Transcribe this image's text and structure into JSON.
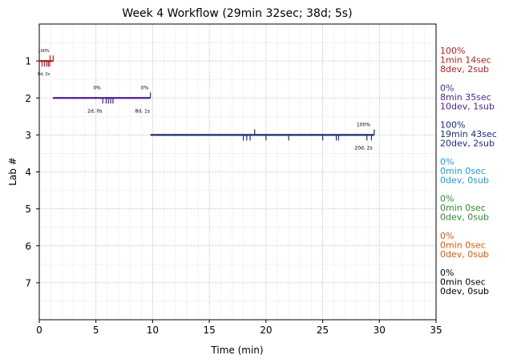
{
  "chart_data": {
    "type": "timeline",
    "title": "Week 4 Workflow (29min 32sec; 38d; 5s)",
    "xlabel": "Time (min)",
    "ylabel": "Lab #",
    "xlim": [
      0,
      35
    ],
    "ylim": [
      8,
      0
    ],
    "xticks": [
      0,
      5,
      10,
      15,
      20,
      25,
      30,
      35
    ],
    "xtick_labels": [
      "0",
      "5",
      "10",
      "15",
      "20",
      "25",
      "30",
      "35"
    ],
    "yticks": [
      1,
      2,
      3,
      4,
      5,
      6,
      7
    ],
    "ytick_labels": [
      "1",
      "2",
      "3",
      "4",
      "5",
      "6",
      "7"
    ],
    "grid": true,
    "labs": [
      {
        "lab": 1,
        "color": "#b22222",
        "start": 0.0,
        "end": 1.23,
        "dev_ticks": [
          0.25,
          0.45,
          0.65,
          0.8,
          0.92
        ],
        "sub_ticks": [
          0.95,
          1.23
        ],
        "annotations": [
          {
            "text": "100%",
            "x": 0.4,
            "pos": "above",
            "size": "small"
          },
          {
            "text": "8d, 2s",
            "x": 0.4,
            "pos": "below",
            "size": "small"
          }
        ],
        "summary": [
          "100%",
          "1min 14sec",
          "8dev, 2sub"
        ]
      },
      {
        "lab": 2,
        "color": "#4b1f91",
        "start": 1.2,
        "end": 9.8,
        "dev_ticks": [
          5.6,
          5.9,
          6.1,
          6.3,
          6.5
        ],
        "sub_ticks": [
          9.8
        ],
        "annotations": [
          {
            "text": "0%",
            "x": 5.1,
            "pos": "above",
            "size": "normal"
          },
          {
            "text": "2d, 0s",
            "x": 4.9,
            "pos": "below",
            "size": "normal"
          },
          {
            "text": "0%",
            "x": 9.3,
            "pos": "above",
            "size": "normal"
          },
          {
            "text": "8d, 1s",
            "x": 9.1,
            "pos": "below",
            "size": "normal"
          }
        ],
        "summary": [
          "0%",
          "8min 35sec",
          "10dev, 1sub"
        ]
      },
      {
        "lab": 3,
        "color": "#1a2a7a",
        "start": 9.8,
        "end": 29.55,
        "dev_ticks": [
          18.0,
          18.3,
          18.6,
          20.0,
          22.0,
          25.0,
          26.2,
          26.4,
          28.9,
          29.3
        ],
        "sub_ticks": [
          19.0,
          29.55
        ],
        "annotations": [
          {
            "text": "100%",
            "x": 28.6,
            "pos": "above",
            "size": "normal"
          },
          {
            "text": "20d, 2s",
            "x": 28.6,
            "pos": "below",
            "size": "normal"
          }
        ],
        "summary": [
          "100%",
          "19min 43sec",
          "20dev, 2sub"
        ]
      },
      {
        "lab": 4,
        "color": "#1e9bd7",
        "summary": [
          "0%",
          "0min 0sec",
          "0dev, 0sub"
        ]
      },
      {
        "lab": 5,
        "color": "#2e8b2e",
        "summary": [
          "0%",
          "0min 0sec",
          "0dev, 0sub"
        ]
      },
      {
        "lab": 6,
        "color": "#e05a00",
        "summary": [
          "0%",
          "0min 0sec",
          "0dev, 0sub"
        ]
      },
      {
        "lab": 7,
        "color": "#000000",
        "summary": [
          "0%",
          "0min 0sec",
          "0dev, 0sub"
        ]
      }
    ]
  }
}
